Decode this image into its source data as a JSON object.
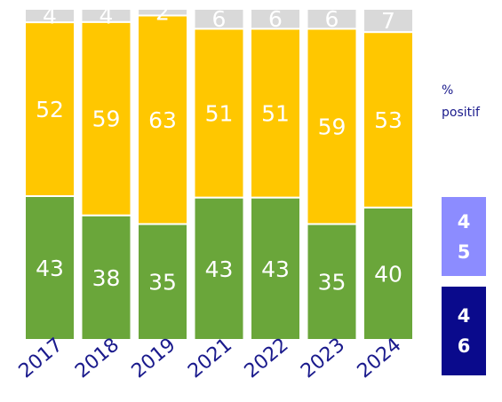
{
  "chart_data": {
    "type": "bar",
    "stacked": true,
    "normalized": true,
    "categories": [
      "2017",
      "2018",
      "2019",
      "2021",
      "2022",
      "2023",
      "2024"
    ],
    "series": [
      {
        "key": "green",
        "color": "#6aa63a",
        "values": [
          43,
          38,
          35,
          43,
          43,
          35,
          40
        ]
      },
      {
        "key": "yellow",
        "color": "#ffc700",
        "values": [
          52,
          59,
          63,
          51,
          51,
          59,
          53
        ]
      },
      {
        "key": "gray",
        "color": "#d9d9d9",
        "values": [
          4,
          4,
          2,
          6,
          6,
          6,
          7
        ]
      }
    ],
    "title": "",
    "xlabel": "",
    "ylabel": ""
  },
  "legend": {
    "unit_label": "%",
    "unit_sub": "positif",
    "badges": [
      {
        "value": "45",
        "color": "#8c8cff"
      },
      {
        "value": "46",
        "color": "#0a0a8c"
      }
    ]
  }
}
